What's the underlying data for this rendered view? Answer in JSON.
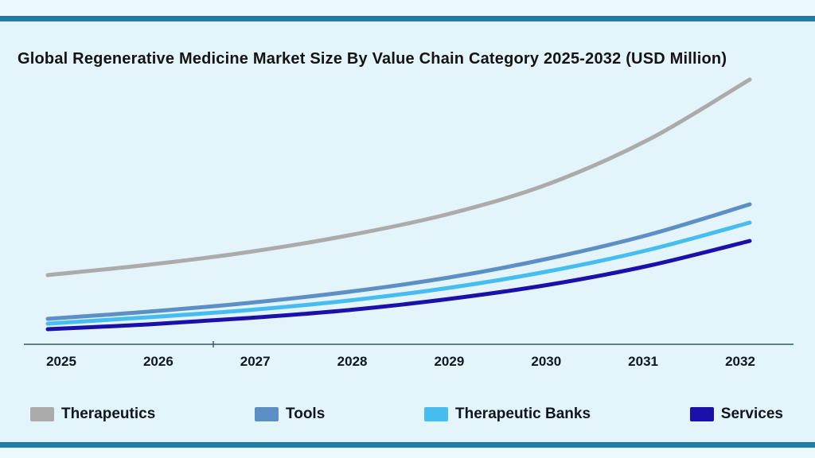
{
  "page": {
    "background_color": "#e3f4fa",
    "outer_strip_color": "#ecfafe",
    "accent_bar_color": "#1e7faa"
  },
  "title": {
    "text": "Global Regenerative Medicine Market Size By Value Chain Category 2025-2032 (USD Million)"
  },
  "x_axis": {
    "labels": [
      "2025",
      "2026",
      "2027",
      "2028",
      "2029",
      "2030",
      "2031",
      "2032"
    ],
    "line_color": "#33576b"
  },
  "chart_data": {
    "type": "line",
    "title": "Global Regenerative Medicine Market Size By Value Chain Category 2025-2032 (USD Million)",
    "xlabel": "",
    "ylabel": "",
    "x": [
      2025,
      2026,
      2027,
      2028,
      2029,
      2030,
      2031,
      2032
    ],
    "series": [
      {
        "name": "Therapeutics",
        "color": "#ababab",
        "values": [
          87,
          100,
          116,
          137,
          164,
          202,
          258,
          333
        ]
      },
      {
        "name": "Tools",
        "color": "#5c8fc5",
        "values": [
          32,
          41,
          52,
          66,
          84,
          108,
          138,
          176
        ]
      },
      {
        "name": "Therapeutic Banks",
        "color": "#45bdf1",
        "values": [
          26,
          34,
          43,
          55,
          71,
          92,
          119,
          153
        ]
      },
      {
        "name": "Services",
        "color": "#1c10ab",
        "values": [
          19,
          25,
          33,
          43,
          57,
          75,
          99,
          130
        ]
      }
    ],
    "ylim": [
      0,
      360
    ],
    "y_axis_labels_visible": false,
    "grid": false,
    "legend_position": "bottom",
    "note": "Y axis is unlabeled in the figure; series values are estimated relative magnitudes read from the plot."
  }
}
